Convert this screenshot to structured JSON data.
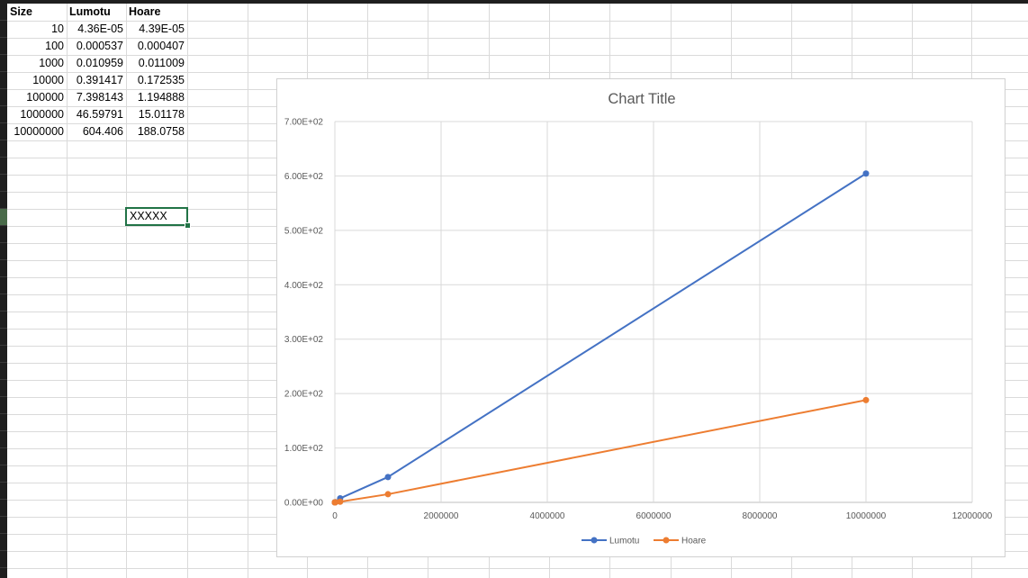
{
  "table": {
    "headers": [
      "Size",
      "Lumotu",
      "Hoare"
    ],
    "rows": [
      [
        "10",
        "4.36E-05",
        "4.39E-05"
      ],
      [
        "100",
        "0.000537",
        "0.000407"
      ],
      [
        "1000",
        "0.010959",
        "0.011009"
      ],
      [
        "10000",
        "0.391417",
        "0.172535"
      ],
      [
        "100000",
        "7.398143",
        "1.194888"
      ],
      [
        "1000000",
        "46.59791",
        "15.01178"
      ],
      [
        "10000000",
        "604.406",
        "188.0758"
      ]
    ]
  },
  "active_cell": {
    "value": "XXXXX"
  },
  "colors": {
    "lumotu": "#4472c4",
    "hoare": "#ed7d31",
    "accent": "#217346"
  },
  "chart_data": {
    "type": "line",
    "title": "Chart Title",
    "x": [
      10,
      100,
      1000,
      10000,
      100000,
      1000000,
      10000000
    ],
    "series": [
      {
        "name": "Lumotu",
        "values": [
          4.36e-05,
          0.000537,
          0.010959,
          0.391417,
          7.398143,
          46.59791,
          604.406
        ]
      },
      {
        "name": "Hoare",
        "values": [
          4.39e-05,
          0.000407,
          0.011009,
          0.172535,
          1.194888,
          15.01178,
          188.0758
        ]
      }
    ],
    "xlim": [
      0,
      12000000
    ],
    "ylim": [
      0,
      700
    ],
    "x_ticks": [
      "0",
      "2000000",
      "4000000",
      "6000000",
      "8000000",
      "10000000",
      "12000000"
    ],
    "y_ticks": [
      "0.00E+00",
      "1.00E+02",
      "2.00E+02",
      "3.00E+02",
      "4.00E+02",
      "5.00E+02",
      "6.00E+02",
      "7.00E+02"
    ],
    "grid": true,
    "legend_position": "bottom"
  }
}
